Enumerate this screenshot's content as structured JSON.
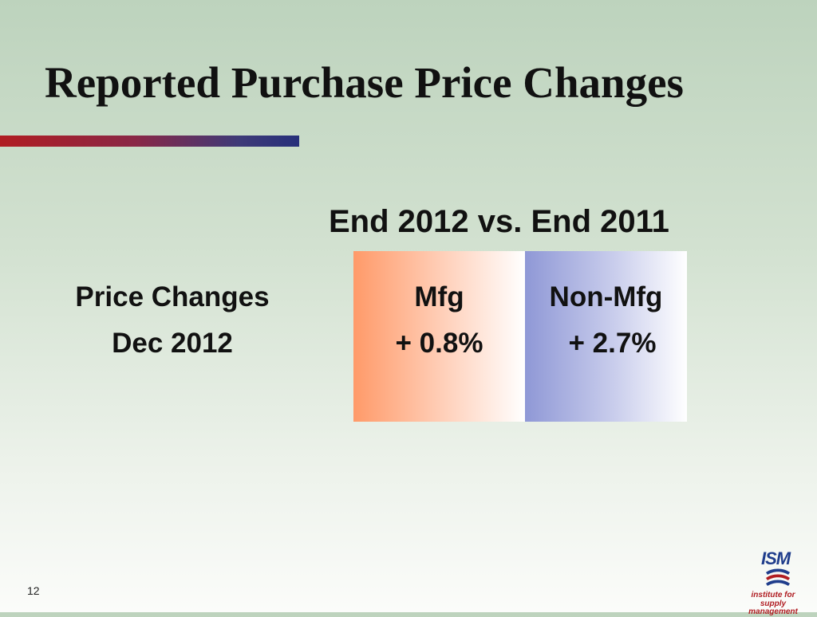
{
  "slide": {
    "title": "Reported Purchase Price Changes",
    "subtitle": "End 2012 vs. End 2011",
    "row_label_line1": "Price Changes",
    "row_label_line2": "Dec 2012",
    "columns": [
      {
        "header": "Mfg",
        "value": "+ 0.8%"
      },
      {
        "header": "Non-Mfg",
        "value": "+ 2.7%"
      }
    ],
    "slide_number": "12"
  },
  "logo": {
    "name": "ISM",
    "tagline_line1": "institute for",
    "tagline_line2": "supply management"
  },
  "colors": {
    "title_rule_start": "#b01d22",
    "title_rule_end": "#27307a",
    "mfg_box": "#ff9a69",
    "nonmfg_box": "#8f98d6",
    "logo_blue": "#1f3d8c",
    "logo_red": "#b01d22"
  }
}
